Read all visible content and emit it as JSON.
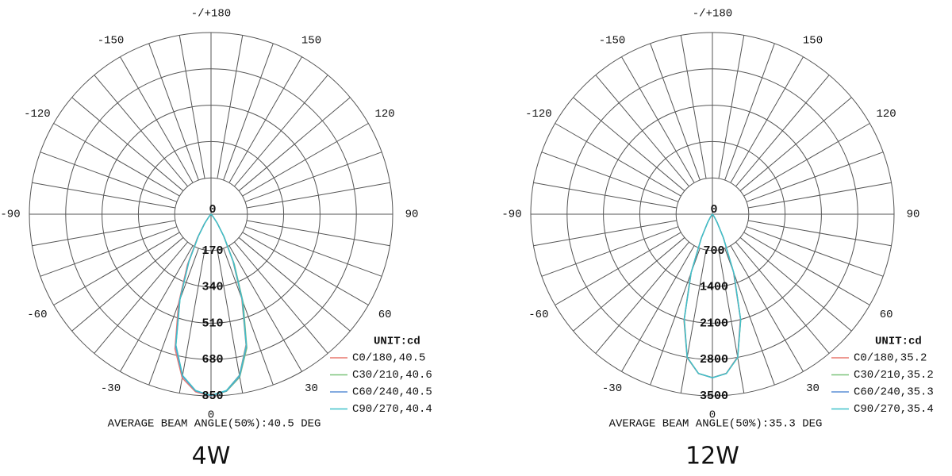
{
  "chart_data": [
    {
      "type": "polar",
      "title": "4W",
      "annotation": "AVERAGE BEAM ANGLE(50%):40.5 DEG",
      "unit_label": "UNIT:cd",
      "x": [
        -60,
        -50,
        -40,
        -35,
        -30,
        -25,
        -20,
        -15,
        -10,
        -5,
        0,
        5,
        10,
        15,
        20,
        25,
        30,
        35,
        40,
        50,
        60
      ],
      "series": [
        {
          "name": "C0/180,40.5",
          "color": "#e8796f",
          "values": [
            0,
            3,
            16,
            55,
            128,
            262,
            445,
            652,
            778,
            834,
            852,
            828,
            765,
            632,
            420,
            242,
            116,
            48,
            14,
            3,
            0
          ]
        },
        {
          "name": "C30/210,40.6",
          "color": "#7cc47a",
          "values": [
            0,
            3,
            14,
            48,
            118,
            246,
            425,
            636,
            768,
            829,
            849,
            832,
            774,
            648,
            440,
            258,
            124,
            52,
            16,
            3,
            0
          ]
        },
        {
          "name": "C60/240,40.5",
          "color": "#5b8fd6",
          "values": [
            0,
            3,
            15,
            50,
            120,
            250,
            430,
            640,
            770,
            830,
            850,
            830,
            770,
            640,
            430,
            250,
            120,
            50,
            15,
            3,
            0
          ]
        },
        {
          "name": "C90/270,40.4",
          "color": "#3fc1c9",
          "values": [
            0,
            2,
            14,
            48,
            116,
            244,
            424,
            634,
            766,
            828,
            848,
            828,
            766,
            636,
            426,
            246,
            118,
            48,
            14,
            2,
            0
          ]
        }
      ],
      "rlim": [
        0,
        850
      ],
      "rticks": [
        0,
        170,
        340,
        510,
        680,
        850
      ],
      "thetaticks": [
        0,
        30,
        60,
        90,
        120,
        150,
        {
          "value": 180,
          "label": "-/+180"
        },
        -150,
        -120,
        -90,
        -60,
        -30
      ]
    },
    {
      "type": "polar",
      "title": "12W",
      "annotation": "AVERAGE BEAM ANGLE(50%):35.3 DEG",
      "unit_label": "UNIT:cd",
      "x": [
        -60,
        -50,
        -40,
        -35,
        -30,
        -25,
        -20,
        -15,
        -10,
        -5,
        0,
        5,
        10,
        15,
        20,
        25,
        30,
        35,
        40,
        50,
        60
      ],
      "series": [
        {
          "name": "C0/180,35.2",
          "color": "#e8796f",
          "values": [
            0,
            3,
            15,
            62,
            185,
            510,
            1220,
            2120,
            2810,
            3085,
            3150,
            3075,
            2790,
            2080,
            1180,
            490,
            176,
            58,
            14,
            3,
            0
          ]
        },
        {
          "name": "C30/210,35.2",
          "color": "#7cc47a",
          "values": [
            0,
            3,
            14,
            58,
            176,
            492,
            1190,
            2090,
            2795,
            3078,
            3148,
            3082,
            2805,
            2110,
            1210,
            505,
            182,
            61,
            15,
            3,
            0
          ]
        },
        {
          "name": "C60/240,35.3",
          "color": "#5b8fd6",
          "values": [
            0,
            3,
            15,
            60,
            180,
            500,
            1200,
            2100,
            2800,
            3080,
            3150,
            3080,
            2800,
            2100,
            1200,
            500,
            180,
            60,
            15,
            3,
            0
          ]
        },
        {
          "name": "C90/270,35.4",
          "color": "#3fc1c9",
          "values": [
            0,
            3,
            16,
            61,
            182,
            506,
            1210,
            2105,
            2802,
            3080,
            3152,
            3080,
            2802,
            2105,
            1210,
            506,
            182,
            61,
            16,
            3,
            0
          ]
        }
      ],
      "rlim": [
        0,
        3500
      ],
      "rticks": [
        0,
        700,
        1400,
        2100,
        2800,
        3500
      ],
      "thetaticks": [
        0,
        30,
        60,
        90,
        120,
        150,
        {
          "value": 180,
          "label": "-/+180"
        },
        -150,
        -120,
        -90,
        -60,
        -30
      ]
    }
  ]
}
